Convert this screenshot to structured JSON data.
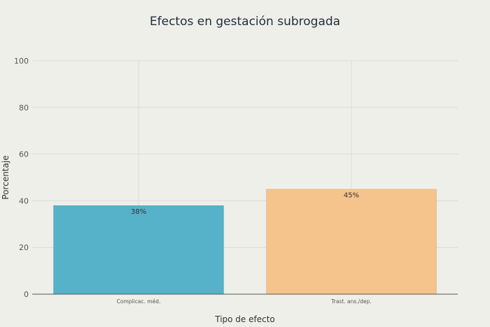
{
  "chart_data": {
    "type": "bar",
    "title": "Efectos en gestación subrogada",
    "xlabel": "Tipo de efecto",
    "ylabel": "Porcentaje",
    "ylim": [
      0,
      100
    ],
    "yticks": [
      0,
      20,
      40,
      60,
      80,
      100
    ],
    "categories": [
      "Complicac. méd.",
      "Trast. ans./dep."
    ],
    "values": [
      38,
      45
    ],
    "data_labels": [
      "38%",
      "45%"
    ],
    "colors": [
      "#55b2c8",
      "#f5c48c"
    ],
    "grid": true
  }
}
